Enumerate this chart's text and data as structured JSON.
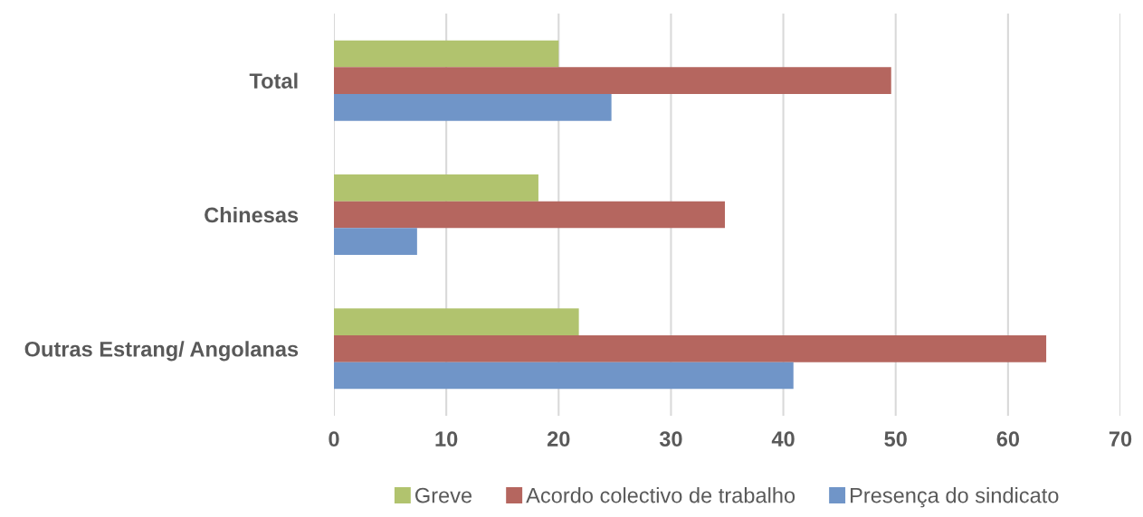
{
  "chart_data": {
    "type": "bar",
    "orientation": "horizontal",
    "categories": [
      "Total",
      "Chinesas",
      "Outras Estrang/ Angolanas"
    ],
    "series": [
      {
        "name": "Greve",
        "color": "#b1c36e",
        "values": [
          20.0,
          18.2,
          21.8
        ]
      },
      {
        "name": "Acordo colectivo de trabalho",
        "color": "#b5665f",
        "values": [
          49.6,
          34.8,
          63.4
        ]
      },
      {
        "name": "Presença do sindicato",
        "color": "#7095c8",
        "values": [
          24.7,
          7.4,
          40.9
        ]
      }
    ],
    "xlim": [
      0,
      70
    ],
    "xticks": [
      0,
      10,
      20,
      30,
      40,
      50,
      60,
      70
    ],
    "grid": "x",
    "legend": "bottom"
  }
}
